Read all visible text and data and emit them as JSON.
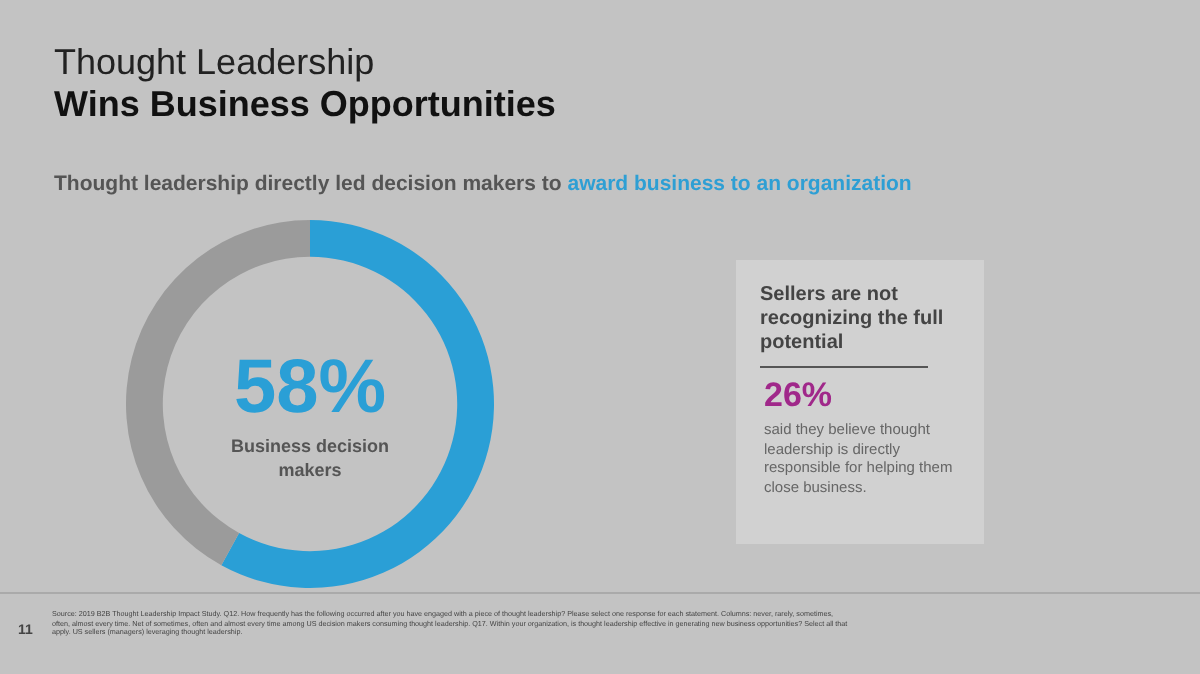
{
  "chart_data": {
    "type": "donut",
    "title": "Thought Leadership",
    "subtitle": "Wins Business Opportunities",
    "categories": [
      "Business decision makers",
      null
    ],
    "values": [
      58,
      42
    ],
    "colors": [
      "#2a9fd6",
      "#9b9b9b"
    ],
    "value_labels": [
      "58%",
      null
    ],
    "legend": false,
    "annotations": [
      "Thought leadership directly led decision makers to ",
      "award business to an organization",
      "Sellers are not recognizing the full potential",
      "26%",
      "said they believe thought leadership is directly responsible for helping them close business.",
      "11",
      "Source: 2019 B2B Thought Leadership Impact Study. Q12. How frequently has the following occurred after you have engaged with a piece of thought leadership? Please select one response for each statement. Columns: never, rarely, sometimes, often, almost every time. Net of sometimes, often and almost every time among US decision makers consuming thought leadership. Q17. Within your organization, is thought leadership effective in generating new business opportunities? Select all that apply. US sellers (managers) leveraging thought leadership."
    ]
  }
}
